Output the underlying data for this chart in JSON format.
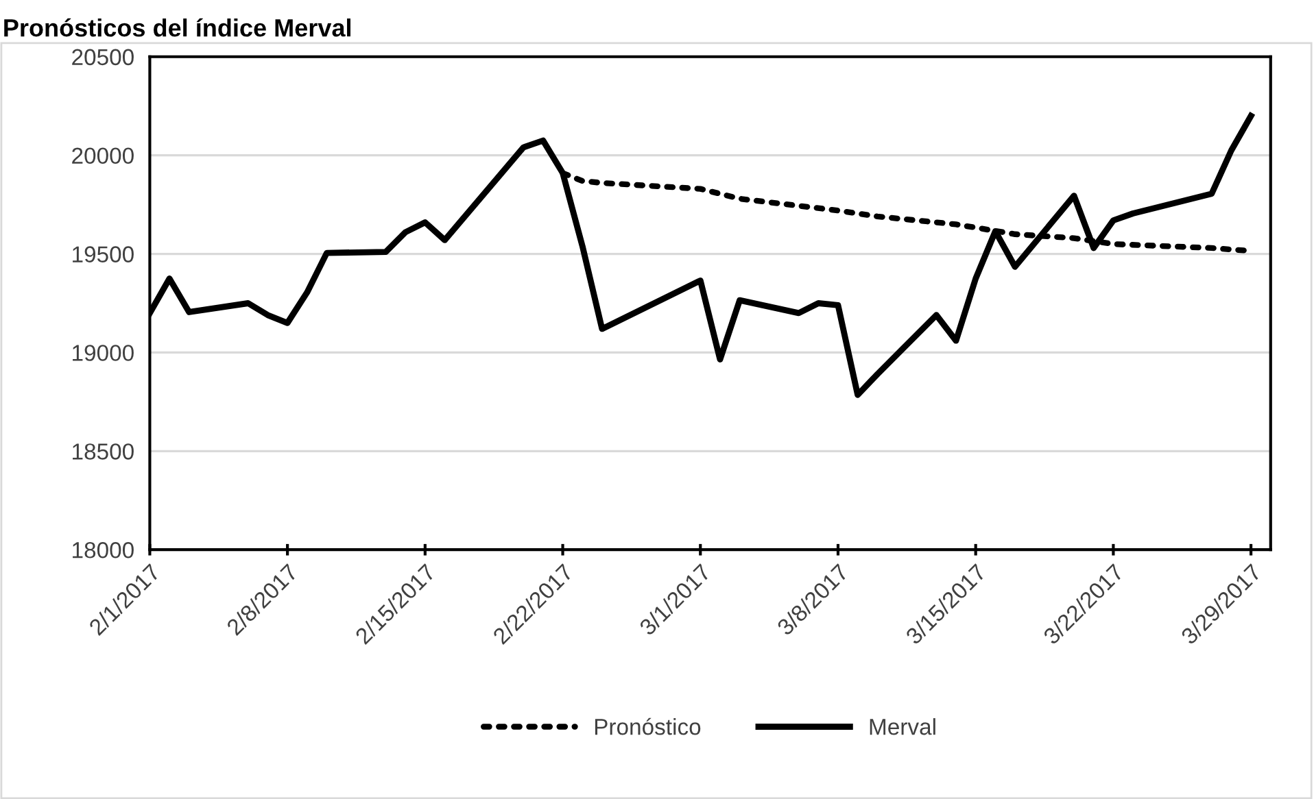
{
  "chart_data": {
    "type": "line",
    "title": "Pronósticos del índice Merval",
    "xlim": [
      "2017-02-01",
      "2017-03-30"
    ],
    "xticks": [
      {
        "value": "2017-02-01",
        "label": "2/1/2017"
      },
      {
        "value": "2017-02-08",
        "label": "2/8/2017"
      },
      {
        "value": "2017-02-15",
        "label": "2/15/2017"
      },
      {
        "value": "2017-02-22",
        "label": "2/22/2017"
      },
      {
        "value": "2017-03-01",
        "label": "3/1/2017"
      },
      {
        "value": "2017-03-08",
        "label": "3/8/2017"
      },
      {
        "value": "2017-03-15",
        "label": "3/15/2017"
      },
      {
        "value": "2017-03-22",
        "label": "3/22/2017"
      },
      {
        "value": "2017-03-29",
        "label": "3/29/2017"
      }
    ],
    "ylim": [
      18000,
      20500
    ],
    "yticks": [
      18000,
      18500,
      19000,
      19500,
      20000,
      20500
    ],
    "grid": "y",
    "legend": "bottom",
    "series": [
      {
        "name": "Pronóstico",
        "color": "#000000",
        "line_style": "dotted",
        "x": [
          "2017-02-22",
          "2017-02-23",
          "2017-02-24",
          "2017-03-01",
          "2017-03-03",
          "2017-03-08",
          "2017-03-10",
          "2017-03-14",
          "2017-03-17",
          "2017-03-20",
          "2017-03-22",
          "2017-03-27",
          "2017-03-29"
        ],
        "values": [
          19910,
          19870,
          19860,
          19830,
          19780,
          19720,
          19690,
          19650,
          19600,
          19580,
          19550,
          19530,
          19515
        ]
      },
      {
        "name": "Merval",
        "color": "#000000",
        "line_style": "solid",
        "x": [
          "2017-02-01",
          "2017-02-02",
          "2017-02-03",
          "2017-02-06",
          "2017-02-07",
          "2017-02-08",
          "2017-02-09",
          "2017-02-10",
          "2017-02-13",
          "2017-02-14",
          "2017-02-15",
          "2017-02-16",
          "2017-02-20",
          "2017-02-21",
          "2017-02-22",
          "2017-02-23",
          "2017-02-24",
          "2017-03-01",
          "2017-03-02",
          "2017-03-03",
          "2017-03-06",
          "2017-03-07",
          "2017-03-08",
          "2017-03-09",
          "2017-03-10",
          "2017-03-13",
          "2017-03-14",
          "2017-03-15",
          "2017-03-16",
          "2017-03-17",
          "2017-03-20",
          "2017-03-21",
          "2017-03-22",
          "2017-03-23",
          "2017-03-27",
          "2017-03-28",
          "2017-03-29"
        ],
        "values": [
          19200,
          19375,
          19205,
          19250,
          19190,
          19150,
          19305,
          19505,
          19510,
          19610,
          19660,
          19570,
          20040,
          20075,
          19910,
          19540,
          19120,
          19365,
          18965,
          19265,
          19200,
          19250,
          19240,
          18785,
          18890,
          19190,
          19060,
          19375,
          19615,
          19435,
          19795,
          19530,
          19670,
          19705,
          19805,
          20025,
          20200
        ]
      }
    ]
  }
}
